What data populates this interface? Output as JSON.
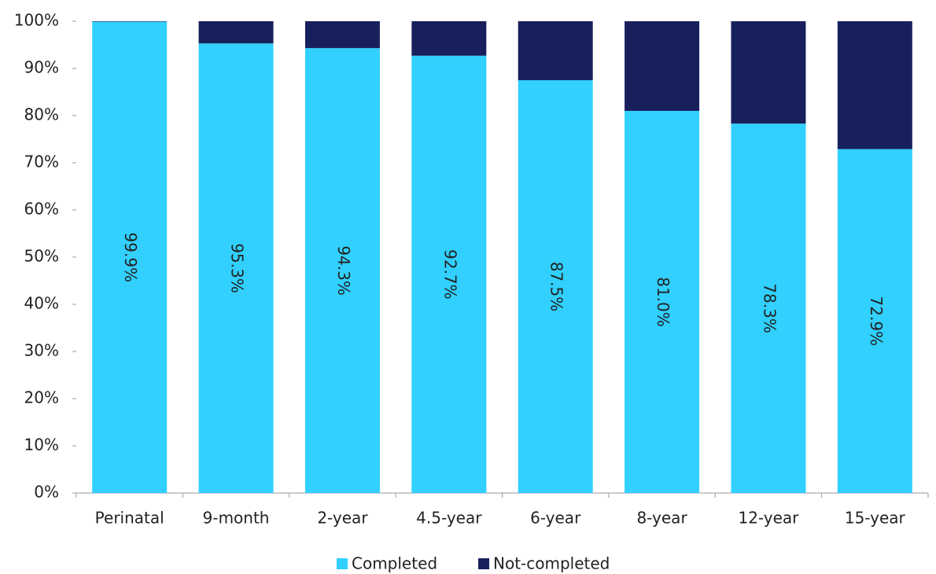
{
  "chart_data": {
    "type": "stacked_bar",
    "categories": [
      "Perinatal",
      "9-month",
      "2-year",
      "4.5-year",
      "6-year",
      "8-year",
      "12-year",
      "15-year"
    ],
    "series": [
      {
        "name": "Completed",
        "color": "#31d0ff",
        "values": [
          99.9,
          95.3,
          94.3,
          92.7,
          87.5,
          81.0,
          78.3,
          72.9
        ],
        "value_labels": [
          "99.9%",
          "95.3%",
          "94.3%",
          "92.7%",
          "87.5%",
          "81.0%",
          "78.3%",
          "72.9%"
        ]
      },
      {
        "name": "Not-completed",
        "color": "#18205c",
        "values": [
          0.1,
          4.7,
          5.7,
          7.3,
          12.5,
          19.0,
          21.7,
          27.1
        ]
      }
    ],
    "ylim": [
      0,
      100
    ],
    "yticks": [
      {
        "value": 0,
        "label": "0%"
      },
      {
        "value": 10,
        "label": "10%"
      },
      {
        "value": 20,
        "label": "20%"
      },
      {
        "value": 30,
        "label": "30%"
      },
      {
        "value": 40,
        "label": "40%"
      },
      {
        "value": 50,
        "label": "50%"
      },
      {
        "value": 60,
        "label": "60%"
      },
      {
        "value": 70,
        "label": "70%"
      },
      {
        "value": 80,
        "label": "80%"
      },
      {
        "value": 90,
        "label": "90%"
      },
      {
        "value": 100,
        "label": "100%"
      }
    ],
    "legend": "bottom"
  }
}
